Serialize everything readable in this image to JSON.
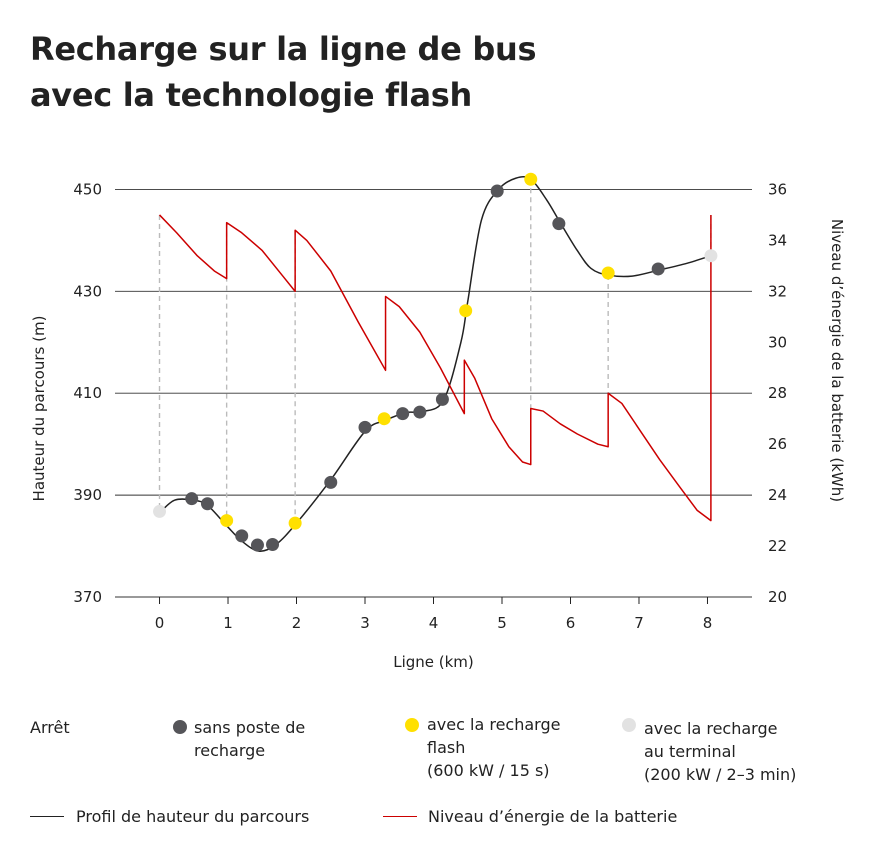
{
  "title_line1": "Recharge sur la ligne de bus",
  "title_line2": "avec la technologie flash",
  "chart_data": {
    "type": "line",
    "xlabel": "Ligne (km)",
    "ylabel_left": "Hauteur du parcours (m)",
    "ylabel_right": "Niveau d’énergie de la batterie (kWh)",
    "xlim": [
      -0.65,
      8.65
    ],
    "ylim_left": [
      370,
      455
    ],
    "ylim_right": [
      20,
      37
    ],
    "x_ticks": [
      "0",
      "1",
      "2",
      "3",
      "4",
      "5",
      "6",
      "7",
      "8"
    ],
    "y_left_ticks": [
      "370",
      "390",
      "410",
      "430",
      "450"
    ],
    "y_right_ticks": [
      "20",
      "22",
      "24",
      "26",
      "28",
      "30",
      "32",
      "34",
      "36"
    ],
    "grid_left_values": [
      390,
      410,
      430,
      450
    ],
    "series": [
      {
        "name": "Profil de hauteur du parcours",
        "axis": "left",
        "color": "#222222",
        "points": [
          [
            0,
            386.5
          ],
          [
            0.22,
            389
          ],
          [
            0.5,
            389
          ],
          [
            0.7,
            388
          ],
          [
            0.98,
            384
          ],
          [
            1.2,
            381
          ],
          [
            1.45,
            379
          ],
          [
            1.7,
            380.3
          ],
          [
            2.0,
            384.5
          ],
          [
            2.5,
            393
          ],
          [
            3.0,
            402.5
          ],
          [
            3.3,
            404.7
          ],
          [
            3.6,
            406.2
          ],
          [
            3.85,
            406.4
          ],
          [
            4.15,
            408.7
          ],
          [
            4.4,
            420
          ],
          [
            4.5,
            428
          ],
          [
            4.7,
            444
          ],
          [
            4.95,
            450
          ],
          [
            5.2,
            452.2
          ],
          [
            5.42,
            452
          ],
          [
            5.65,
            448
          ],
          [
            5.85,
            443.5
          ],
          [
            6.1,
            438
          ],
          [
            6.3,
            434.5
          ],
          [
            6.55,
            433.2
          ],
          [
            6.9,
            433
          ],
          [
            7.3,
            434.2
          ],
          [
            7.7,
            435.5
          ],
          [
            8.05,
            437
          ]
        ]
      },
      {
        "name": "Niveau d’énergie de la batterie",
        "axis": "right",
        "color": "#cc0000",
        "points": [
          [
            0,
            35
          ],
          [
            0.25,
            34.3
          ],
          [
            0.55,
            33.4
          ],
          [
            0.8,
            32.8
          ],
          [
            0.98,
            32.5
          ],
          [
            0.98,
            34.7
          ],
          [
            1.2,
            34.3
          ],
          [
            1.5,
            33.6
          ],
          [
            1.8,
            32.6
          ],
          [
            1.98,
            32.0
          ],
          [
            1.98,
            34.4
          ],
          [
            2.15,
            34.0
          ],
          [
            2.5,
            32.8
          ],
          [
            2.9,
            30.8
          ],
          [
            3.3,
            28.9
          ],
          [
            3.3,
            31.8
          ],
          [
            3.5,
            31.4
          ],
          [
            3.8,
            30.4
          ],
          [
            4.1,
            29.0
          ],
          [
            4.45,
            27.2
          ],
          [
            4.45,
            29.3
          ],
          [
            4.6,
            28.6
          ],
          [
            4.85,
            27.0
          ],
          [
            5.1,
            25.9
          ],
          [
            5.3,
            25.3
          ],
          [
            5.42,
            25.2
          ],
          [
            5.42,
            27.4
          ],
          [
            5.6,
            27.3
          ],
          [
            5.85,
            26.8
          ],
          [
            6.1,
            26.4
          ],
          [
            6.4,
            26.0
          ],
          [
            6.55,
            25.9
          ],
          [
            6.55,
            28.0
          ],
          [
            6.75,
            27.6
          ],
          [
            7.0,
            26.6
          ],
          [
            7.3,
            25.4
          ],
          [
            7.6,
            24.3
          ],
          [
            7.85,
            23.4
          ],
          [
            8.05,
            23.0
          ],
          [
            8.05,
            35.0
          ]
        ]
      }
    ],
    "stops_sans_poste": [
      [
        0.47,
        389.3
      ],
      [
        0.7,
        388.3
      ],
      [
        1.2,
        382
      ],
      [
        1.43,
        380.2
      ],
      [
        1.65,
        380.3
      ],
      [
        2.5,
        392.5
      ],
      [
        3.0,
        403.3
      ],
      [
        3.55,
        406
      ],
      [
        3.8,
        406.3
      ],
      [
        4.13,
        408.8
      ],
      [
        4.93,
        449.7
      ],
      [
        5.83,
        443.3
      ],
      [
        7.28,
        434.4
      ]
    ],
    "stops_flash": [
      [
        0.98,
        385
      ],
      [
        1.98,
        384.5
      ],
      [
        3.28,
        405
      ],
      [
        4.47,
        426.2
      ],
      [
        5.42,
        452
      ],
      [
        6.55,
        433.6
      ]
    ],
    "stops_terminal": [
      [
        0,
        386.8
      ],
      [
        8.05,
        437
      ]
    ],
    "charge_markers_x": [
      0,
      0.98,
      1.98,
      3.28,
      4.47,
      5.42,
      6.55,
      8.05
    ],
    "colors": {
      "stop_sans_poste": "#555559",
      "stop_flash": "#ffe000",
      "stop_terminal": "#e2e2e2",
      "battery_line": "#cc0000",
      "height_line": "#222222",
      "grid": "#333333",
      "dashed": "#bbbbbb"
    }
  },
  "legend": {
    "stop_header": "Arrêt",
    "sans_poste_line1": "sans poste de",
    "sans_poste_line2": "recharge",
    "flash_line1": "avec la recharge",
    "flash_line2": "flash",
    "flash_line3": "(600 kW / 15 s)",
    "terminal_line1": "avec la recharge",
    "terminal_line2": "au terminal",
    "terminal_line3": "(200 kW / 2–3 min)",
    "height_profile": "Profil de hauteur du parcours",
    "battery_level": "Niveau d’énergie de la batterie"
  }
}
